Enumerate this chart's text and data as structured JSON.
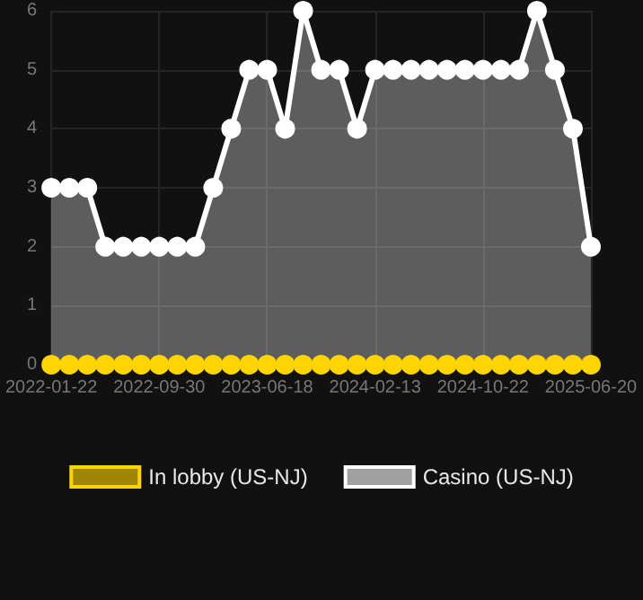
{
  "chart_data": {
    "type": "area",
    "categories": [
      "2022-01-22",
      null,
      null,
      null,
      null,
      null,
      "2022-09-30",
      null,
      null,
      null,
      null,
      null,
      "2023-06-18",
      null,
      null,
      null,
      null,
      null,
      "2024-02-13",
      null,
      null,
      null,
      null,
      null,
      "2024-10-22",
      null,
      null,
      null,
      null,
      null,
      "2025-06-20"
    ],
    "series": [
      {
        "name": "In lobby (US-NJ)",
        "type": "line",
        "color": "#ffd400",
        "values": [
          0,
          0,
          0,
          0,
          0,
          0,
          0,
          0,
          0,
          0,
          0,
          0,
          0,
          0,
          0,
          0,
          0,
          0,
          0,
          0,
          0,
          0,
          0,
          0,
          0,
          0,
          0,
          0,
          0,
          0,
          0
        ]
      },
      {
        "name": "Casino (US-NJ)",
        "color": "#ffffff",
        "values": [
          3,
          3,
          3,
          2,
          2,
          2,
          2,
          2,
          2,
          3,
          4,
          5,
          5,
          4,
          6,
          5,
          5,
          4,
          5,
          5,
          5,
          5,
          5,
          5,
          5,
          5,
          5,
          6,
          5,
          4,
          2
        ]
      }
    ],
    "ylim": [
      0,
      6
    ],
    "yticks": [
      0,
      1,
      2,
      3,
      4,
      5,
      6
    ],
    "grid": true,
    "legend": "bottom",
    "marker": "circle",
    "line_style": "solid"
  }
}
